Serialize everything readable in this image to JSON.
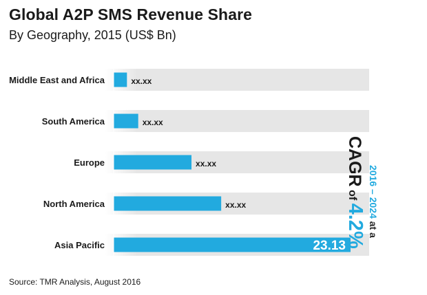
{
  "header": {
    "title": "Global A2P SMS Revenue Share",
    "subtitle": "By Geography, 2015 (US$ Bn)"
  },
  "note": {
    "period": "2016 – 2024",
    "at_a": "at a",
    "cagr": "CAGR",
    "of": "of",
    "rate": "4.2%"
  },
  "source": "Source: TMR Analysis, August 2016",
  "colors": {
    "bar": "#22aadf",
    "track": "#e6e6e6",
    "accent": "#22aadf"
  },
  "chart_data": {
    "type": "bar",
    "orientation": "horizontal",
    "title": "Global A2P SMS Revenue Share",
    "subtitle": "By Geography, 2015 (US$ Bn)",
    "categories": [
      "Middle East and Africa",
      "South America",
      "Europe",
      "North America",
      "Asia Pacific"
    ],
    "values": [
      1.3,
      2.4,
      7.6,
      10.5,
      23.13
    ],
    "labels": [
      "xx.xx",
      "xx.xx",
      "xx.xx",
      "xx.xx",
      "23.13"
    ],
    "xlim": [
      0,
      25.3
    ],
    "grid": false,
    "legend": "none"
  }
}
